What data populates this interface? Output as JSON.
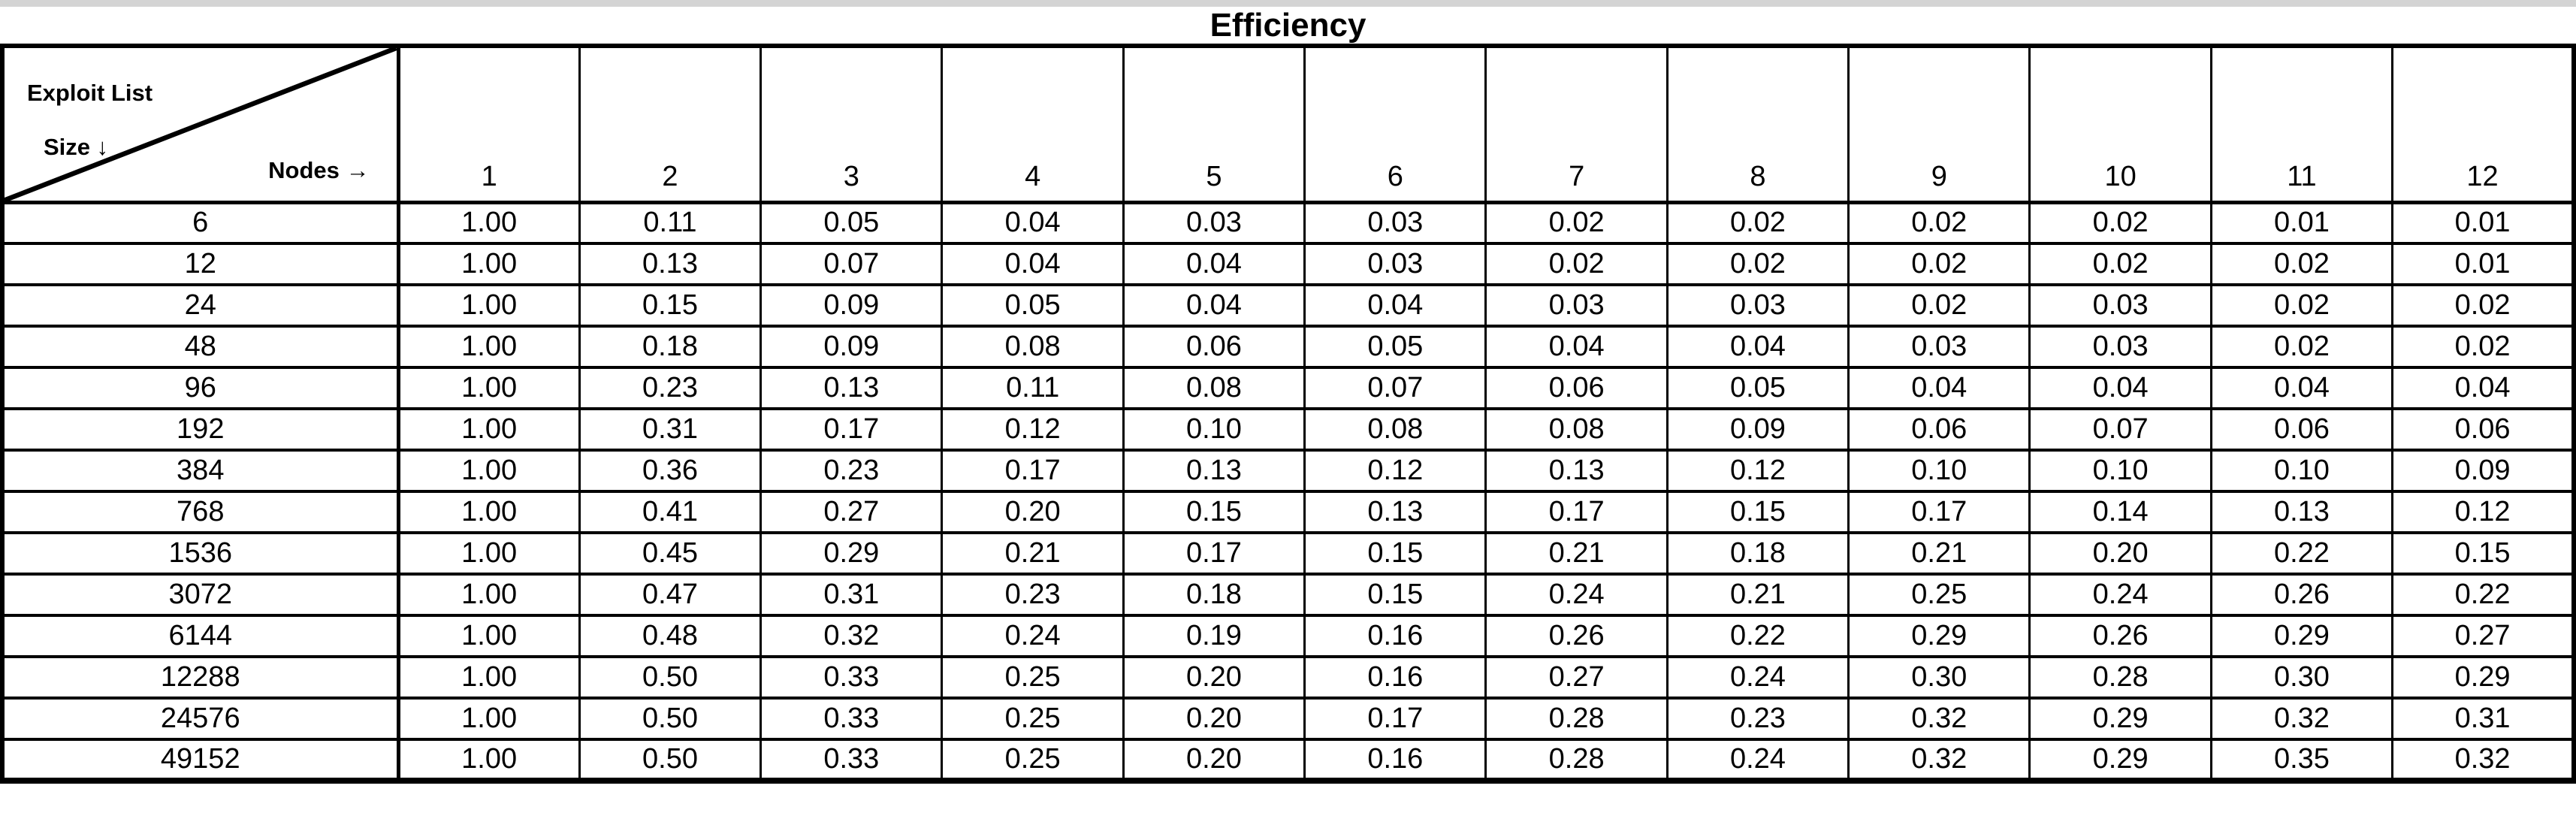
{
  "title": "Efficiency",
  "corner": {
    "line1": "Exploit List",
    "line2": "Size ↓",
    "line3": "Nodes →"
  },
  "chart_data": {
    "type": "table",
    "title": "Efficiency",
    "row_axis_label": "Exploit List Size",
    "col_axis_label": "Nodes",
    "columns": [
      "1",
      "2",
      "3",
      "4",
      "5",
      "6",
      "7",
      "8",
      "9",
      "10",
      "11",
      "12"
    ],
    "rows": [
      {
        "size": "6",
        "values": [
          "1.00",
          "0.11",
          "0.05",
          "0.04",
          "0.03",
          "0.03",
          "0.02",
          "0.02",
          "0.02",
          "0.02",
          "0.01",
          "0.01"
        ]
      },
      {
        "size": "12",
        "values": [
          "1.00",
          "0.13",
          "0.07",
          "0.04",
          "0.04",
          "0.03",
          "0.02",
          "0.02",
          "0.02",
          "0.02",
          "0.02",
          "0.01"
        ]
      },
      {
        "size": "24",
        "values": [
          "1.00",
          "0.15",
          "0.09",
          "0.05",
          "0.04",
          "0.04",
          "0.03",
          "0.03",
          "0.02",
          "0.03",
          "0.02",
          "0.02"
        ]
      },
      {
        "size": "48",
        "values": [
          "1.00",
          "0.18",
          "0.09",
          "0.08",
          "0.06",
          "0.05",
          "0.04",
          "0.04",
          "0.03",
          "0.03",
          "0.02",
          "0.02"
        ]
      },
      {
        "size": "96",
        "values": [
          "1.00",
          "0.23",
          "0.13",
          "0.11",
          "0.08",
          "0.07",
          "0.06",
          "0.05",
          "0.04",
          "0.04",
          "0.04",
          "0.04"
        ]
      },
      {
        "size": "192",
        "values": [
          "1.00",
          "0.31",
          "0.17",
          "0.12",
          "0.10",
          "0.08",
          "0.08",
          "0.09",
          "0.06",
          "0.07",
          "0.06",
          "0.06"
        ]
      },
      {
        "size": "384",
        "values": [
          "1.00",
          "0.36",
          "0.23",
          "0.17",
          "0.13",
          "0.12",
          "0.13",
          "0.12",
          "0.10",
          "0.10",
          "0.10",
          "0.09"
        ]
      },
      {
        "size": "768",
        "values": [
          "1.00",
          "0.41",
          "0.27",
          "0.20",
          "0.15",
          "0.13",
          "0.17",
          "0.15",
          "0.17",
          "0.14",
          "0.13",
          "0.12"
        ]
      },
      {
        "size": "1536",
        "values": [
          "1.00",
          "0.45",
          "0.29",
          "0.21",
          "0.17",
          "0.15",
          "0.21",
          "0.18",
          "0.21",
          "0.20",
          "0.22",
          "0.15"
        ]
      },
      {
        "size": "3072",
        "values": [
          "1.00",
          "0.47",
          "0.31",
          "0.23",
          "0.18",
          "0.15",
          "0.24",
          "0.21",
          "0.25",
          "0.24",
          "0.26",
          "0.22"
        ]
      },
      {
        "size": "6144",
        "values": [
          "1.00",
          "0.48",
          "0.32",
          "0.24",
          "0.19",
          "0.16",
          "0.26",
          "0.22",
          "0.29",
          "0.26",
          "0.29",
          "0.27"
        ]
      },
      {
        "size": "12288",
        "values": [
          "1.00",
          "0.50",
          "0.33",
          "0.25",
          "0.20",
          "0.16",
          "0.27",
          "0.24",
          "0.30",
          "0.28",
          "0.30",
          "0.29"
        ]
      },
      {
        "size": "24576",
        "values": [
          "1.00",
          "0.50",
          "0.33",
          "0.25",
          "0.20",
          "0.17",
          "0.28",
          "0.23",
          "0.32",
          "0.29",
          "0.32",
          "0.31"
        ]
      },
      {
        "size": "49152",
        "values": [
          "1.00",
          "0.50",
          "0.33",
          "0.25",
          "0.20",
          "0.16",
          "0.28",
          "0.24",
          "0.32",
          "0.29",
          "0.35",
          "0.32"
        ]
      }
    ],
    "colors": {
      "grid": "#000000",
      "text": "#000000",
      "background": "#ffffff",
      "edge_strip": "#d4d4d4"
    }
  }
}
